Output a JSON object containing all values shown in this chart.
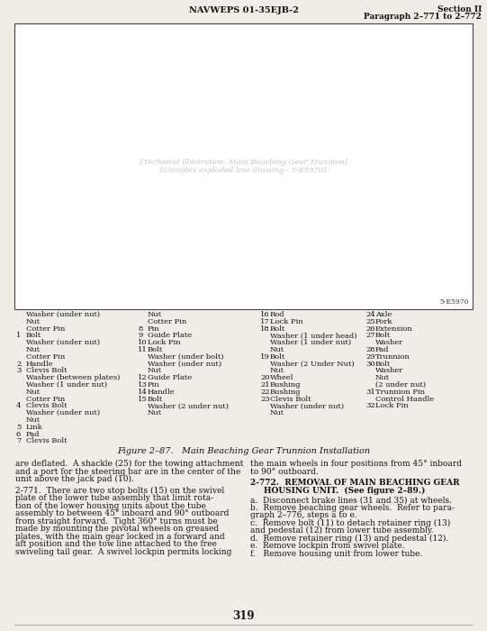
{
  "header_left": "NAVWEPS 01-35EJB-2",
  "header_right_line1": "Section II",
  "header_right_line2": "Paragraph 2–771 to 2–772",
  "figure_label": "Figure 2–87.   Main Beaching Gear Trunnion Installation",
  "figure_id": "5-E5970",
  "page_number": "319",
  "bg_color": "#f0ede4",
  "text_color": "#111111",
  "box_color": "#ffffff",
  "parts_col1_header": [
    "Washer (under nut)",
    "Nut",
    "Cotter Pin"
  ],
  "parts_col2_header": [
    "Nut",
    "Cotter Pin"
  ],
  "parts_col3_header": [],
  "parts_col4_header": [],
  "parts_col1": [
    {
      "num": "1",
      "items": [
        "Bolt",
        "Washer (under nut)",
        "Nut",
        "Cotter Pin"
      ]
    },
    {
      "num": "2",
      "items": [
        "Handle"
      ]
    },
    {
      "num": "3",
      "items": [
        "Clevis Bolt",
        "Washer (between plates)",
        "Washer (1 under nut)",
        "Nut",
        "Cotter Pin"
      ]
    },
    {
      "num": "4",
      "items": [
        "Clevis Bolt",
        "Washer (under nut)",
        "Nut"
      ]
    },
    {
      "num": "5",
      "items": [
        "Link"
      ]
    },
    {
      "num": "6",
      "items": [
        "Pad"
      ]
    },
    {
      "num": "7",
      "items": [
        "Clevis Bolt"
      ]
    }
  ],
  "parts_col2": [
    {
      "num": "8",
      "items": [
        "Pin"
      ]
    },
    {
      "num": "9",
      "items": [
        "Guide Plate"
      ]
    },
    {
      "num": "10",
      "items": [
        "Lock Pin"
      ]
    },
    {
      "num": "11",
      "items": [
        "Bolt",
        "Washer (under bolt)",
        "Washer (under nut)",
        "Nut"
      ]
    },
    {
      "num": "12",
      "items": [
        "Guide Plate"
      ]
    },
    {
      "num": "13",
      "items": [
        "Pin"
      ]
    },
    {
      "num": "14",
      "items": [
        "Handle"
      ]
    },
    {
      "num": "15",
      "items": [
        "Bolt",
        "Washer (2 under nut)",
        "Nut"
      ]
    }
  ],
  "parts_col3": [
    {
      "num": "16",
      "items": [
        "Rod"
      ]
    },
    {
      "num": "17",
      "items": [
        "Lock Pin"
      ]
    },
    {
      "num": "18",
      "items": [
        "Bolt",
        "Washer (1 under head)",
        "Washer (1 under nut)",
        "Nut"
      ]
    },
    {
      "num": "19",
      "items": [
        "Bolt",
        "Washer (2 Under Nut)",
        "Nut"
      ]
    },
    {
      "num": "20",
      "items": [
        "Wheel"
      ]
    },
    {
      "num": "21",
      "items": [
        "Bushing"
      ]
    },
    {
      "num": "22",
      "items": [
        "Bushing"
      ]
    },
    {
      "num": "23",
      "items": [
        "Clevis Bolt",
        "Washer (under nut)",
        "Nut"
      ]
    }
  ],
  "parts_col4": [
    {
      "num": "24",
      "items": [
        "Axle"
      ]
    },
    {
      "num": "25",
      "items": [
        "Fork"
      ]
    },
    {
      "num": "26",
      "items": [
        "Extension"
      ]
    },
    {
      "num": "27",
      "items": [
        "Bolt",
        "Washer"
      ]
    },
    {
      "num": "28",
      "items": [
        "Pad"
      ]
    },
    {
      "num": "29",
      "items": [
        "Trunnion"
      ]
    },
    {
      "num": "30",
      "items": [
        "Bolt",
        "Washer",
        "Nut",
        "(2 under nut)"
      ]
    },
    {
      "num": "31",
      "items": [
        "Trunnion Pin",
        "Control Handle"
      ]
    },
    {
      "num": "32",
      "items": [
        "Lock Pin"
      ]
    }
  ],
  "body_left": [
    "are deflated.  A shackle (25) for the towing attachment",
    "and a port for the steering bar are in the center of the",
    "unit above the jack pad (10).",
    "",
    "2-771.  There are two stop bolts (15) on the swivel",
    "plate of the lower tube assembly that limit rota-",
    "tion of the lower housing units about the tube",
    "assembly to between 45° inboard and 90° outboard",
    "from straight forward.  Tight 360° turns must be",
    "made by mounting the pivotal wheels on greased",
    "plates, with the main gear locked in a forward and",
    "aft position and the tow line attached to the free",
    "swiveling tail gear.  A swivel lockpin permits locking"
  ],
  "body_right_para1": [
    "the main wheels in four positions from 45° inboard",
    "to 90° outboard."
  ],
  "body_right_head": "2-772.  REMOVAL OF MAIN BEACHING GEAR",
  "body_right_head2": "HOUSING UNIT.  (See figure 2–89.)",
  "body_right_steps": [
    "a.  Disconnect brake lines (31 and 35) at wheels.",
    "b.  Remove beaching gear wheels.  Refer to para-\n    graph 2–776, steps a to e.",
    "c.  Remove bolt (11) to detach retainer ring (13)\nand pedestal (12) from lower tube assembly.",
    "d.  Remove retainer ring (13) and pedestal (12).",
    "e.  Remove lockpin from swivel plate.",
    "f.   Remove housing unit from lower tube."
  ]
}
